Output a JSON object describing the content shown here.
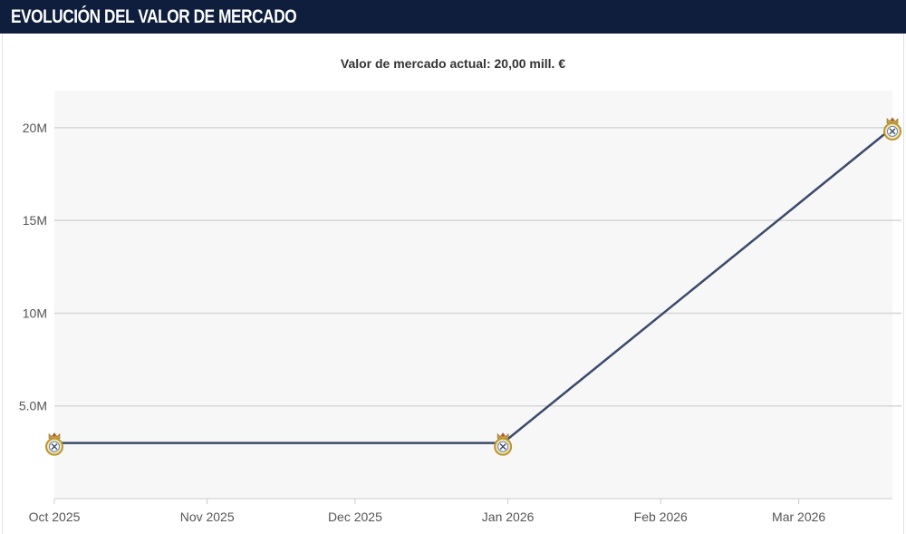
{
  "header": {
    "title": "EVOLUCIÓN DEL VALOR DE MERCADO"
  },
  "chart_data": {
    "type": "line",
    "title": "Valor de mercado actual: 20,00 mill. €",
    "xlabel": "",
    "ylabel": "",
    "x_ticks": [
      "Oct 2025",
      "Nov 2025",
      "Dec 2025",
      "Jan 2026",
      "Feb 2026",
      "Mar 2026"
    ],
    "y_ticks": [
      "5.0M",
      "10M",
      "15M",
      "20M"
    ],
    "ylim": [
      0,
      22000000
    ],
    "xlim": [
      "2025-10-01",
      "2026-03-20"
    ],
    "grid": true,
    "series": [
      {
        "color": "#3b4a6b",
        "marker": "club-crest-icon",
        "points": [
          {
            "x": "2025-10-01",
            "y": 3000000
          },
          {
            "x": "2025-12-31",
            "y": 3000000
          },
          {
            "x": "2026-03-20",
            "y": 20000000
          }
        ]
      }
    ]
  }
}
